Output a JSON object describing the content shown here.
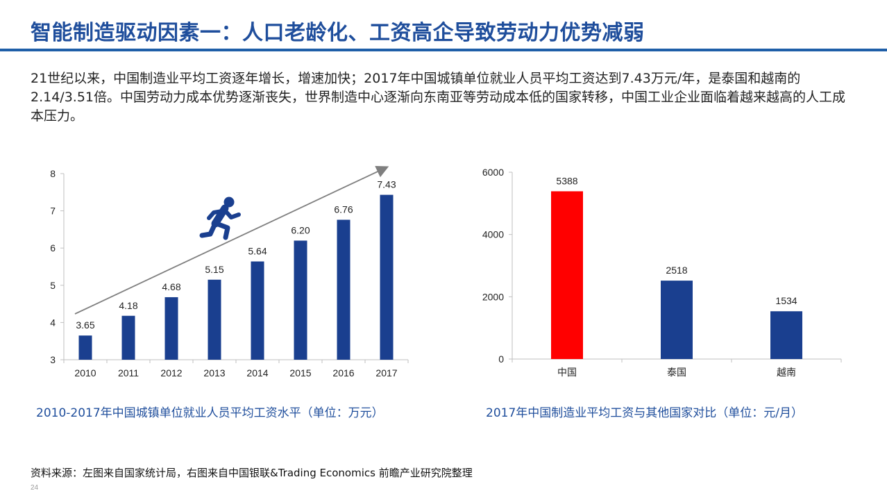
{
  "slide": {
    "title": "智能制造驱动因素一：人口老龄化、工资高企导致劳动力优势减弱",
    "intro": "21世纪以来，中国制造业平均工资逐年增长，增速加快；2017年中国城镇单位就业人员平均工资达到7.43万元/年，是泰国和越南的2.14/3.51倍。中国劳动力成本优势逐渐丧失，世界制造中心逐渐向东南亚等劳动成本低的国家转移，中国工业企业面临着越来越高的人工成本压力。",
    "source": "资料来源：左图来自国家统计局，右图来自中国银联&Trading Economics 前瞻产业研究院整理",
    "page_number": "24"
  },
  "colors": {
    "title": "#1f4e9c",
    "bar_blue": "#1a3f8f",
    "bar_red": "#ff0000",
    "arrow": "#7f7f7f",
    "runner_icon": "#1a3f8f"
  },
  "icons": [
    "running-man-icon",
    "trend-arrow-icon"
  ],
  "chart_data": [
    {
      "type": "bar",
      "caption": "2010-2017年中国城镇单位就业人员平均工资水平（单位：万元）",
      "categories": [
        "2010",
        "2011",
        "2012",
        "2013",
        "2014",
        "2015",
        "2016",
        "2017"
      ],
      "values": [
        3.65,
        4.18,
        4.68,
        5.15,
        5.64,
        6.2,
        6.76,
        7.43
      ],
      "value_labels": [
        "3.65",
        "4.18",
        "4.68",
        "5.15",
        "5.64",
        "6.20",
        "6.76",
        "7.43"
      ],
      "ylim": [
        3,
        8
      ],
      "yticks": [
        "3",
        "4",
        "5",
        "6",
        "7",
        "8"
      ],
      "grid": false,
      "color": "#1a3f8f",
      "annotation": "upward trend arrow with running figure icon"
    },
    {
      "type": "bar",
      "caption": "2017年中国制造业平均工资与其他国家对比（单位：元/月）",
      "categories": [
        "中国",
        "泰国",
        "越南"
      ],
      "values": [
        5388,
        2518,
        1534
      ],
      "value_labels": [
        "5388",
        "2518",
        "1534"
      ],
      "ylim": [
        0,
        6000
      ],
      "yticks": [
        "0",
        "2000",
        "4000",
        "6000"
      ],
      "grid": false,
      "bar_colors": [
        "#ff0000",
        "#1a3f8f",
        "#1a3f8f"
      ]
    }
  ]
}
